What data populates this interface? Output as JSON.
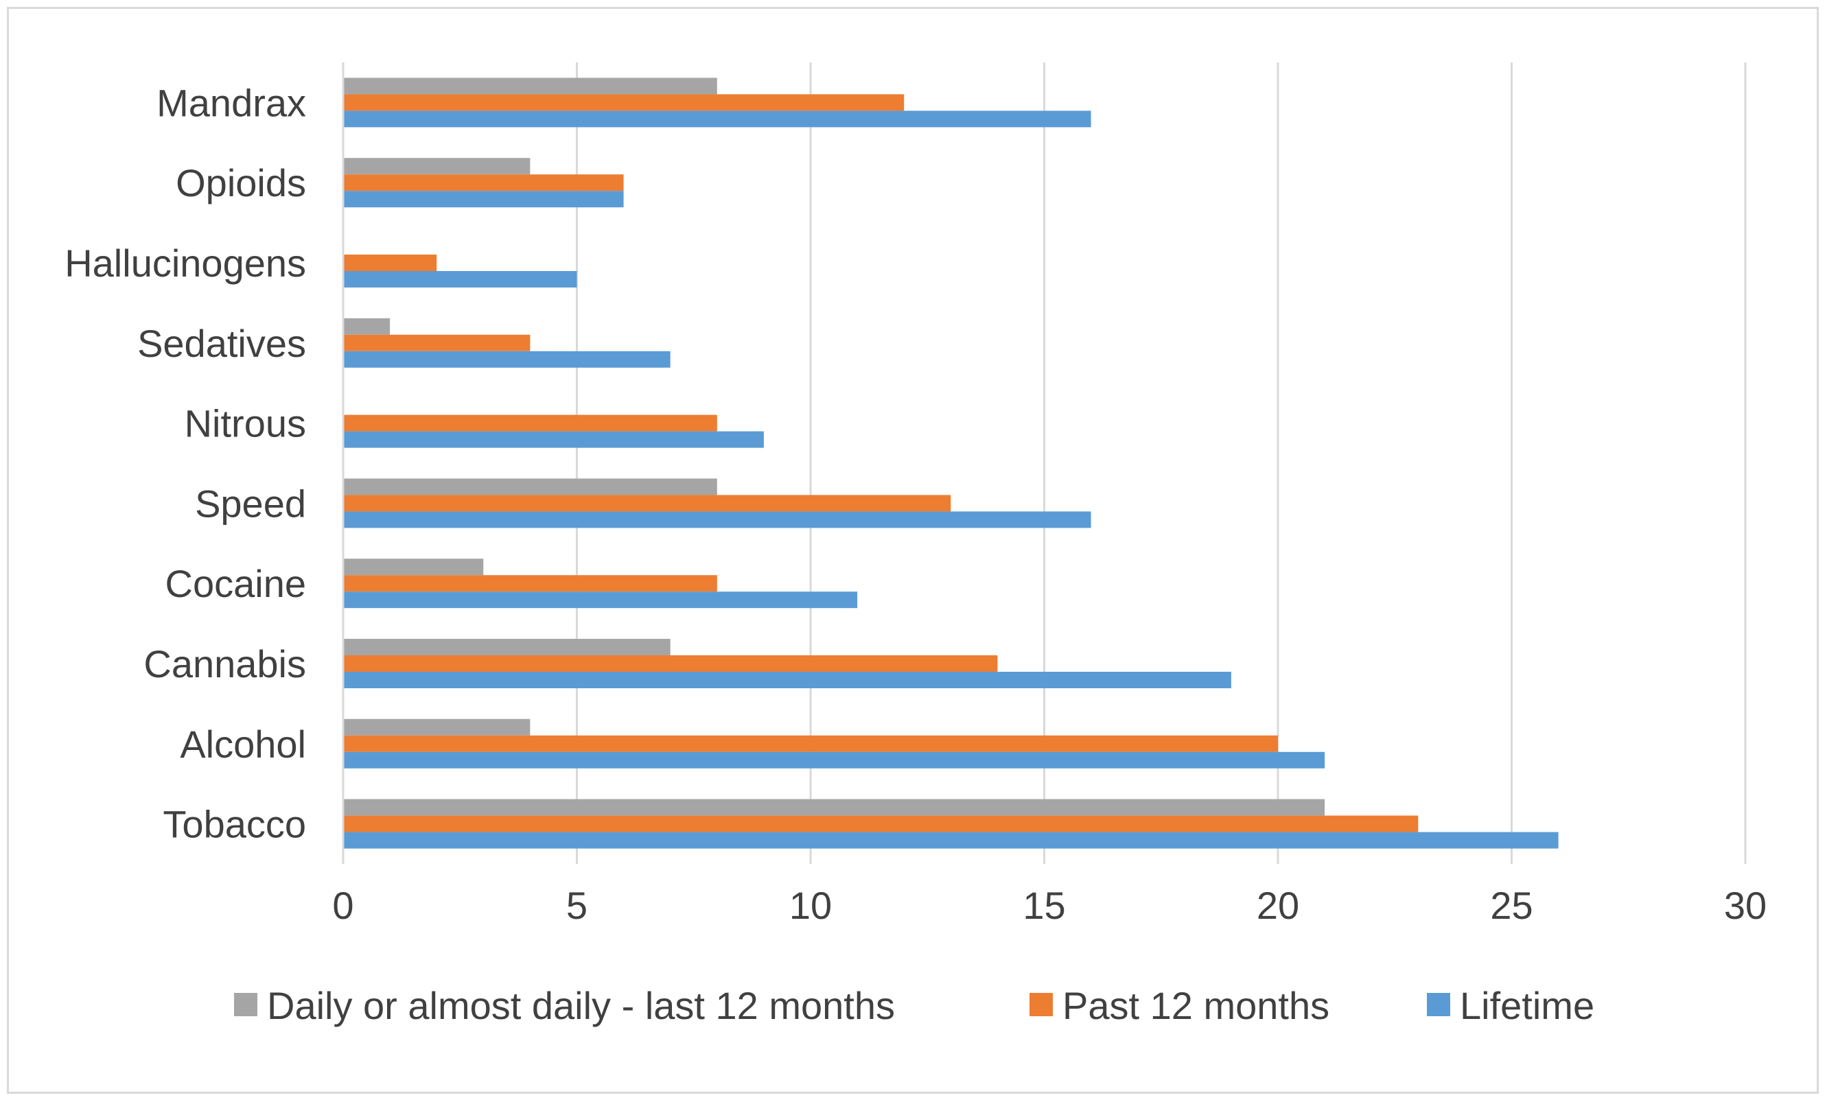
{
  "chart_data": {
    "type": "bar",
    "orientation": "horizontal",
    "categories": [
      "Tobacco",
      "Alcohol",
      "Cannabis",
      "Cocaine",
      "Speed",
      "Nitrous",
      "Sedatives",
      "Hallucinogens",
      "Opioids",
      "Mandrax"
    ],
    "series": [
      {
        "name": "Daily or almost daily - last 12 months",
        "color": "#a5a5a5",
        "values": [
          21,
          4,
          7,
          3,
          8,
          0,
          1,
          0,
          4,
          8
        ]
      },
      {
        "name": "Past 12 months",
        "color": "#ed7d31",
        "values": [
          23,
          20,
          14,
          8,
          13,
          8,
          4,
          2,
          6,
          12
        ]
      },
      {
        "name": "Lifetime",
        "color": "#5b9bd5",
        "values": [
          26,
          21,
          19,
          11,
          16,
          9,
          7,
          5,
          6,
          16
        ]
      }
    ],
    "xlim": [
      0,
      30
    ],
    "x_ticks": [
      "0",
      "5",
      "10",
      "15",
      "20",
      "25",
      "30"
    ],
    "grid": true,
    "legend_position": "bottom",
    "title": "",
    "xlabel": "",
    "ylabel": ""
  }
}
